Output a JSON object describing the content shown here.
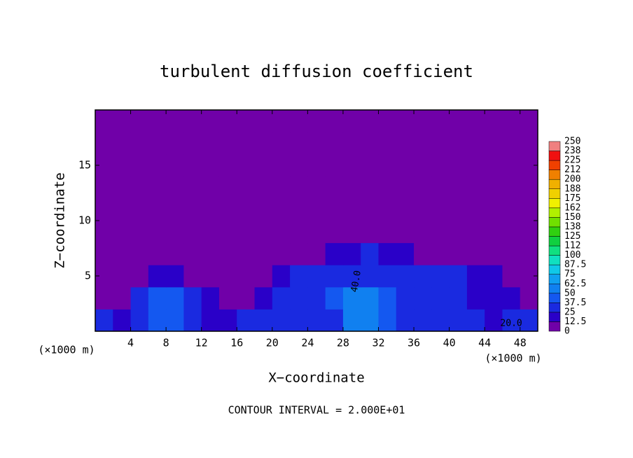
{
  "chart_data": {
    "type": "contour",
    "title": "turbulent diffusion coefficient",
    "x_label": "X−coordinate",
    "y_label": "Z−coordinate",
    "x_unit_labels": [
      "(×1000 m)",
      "(×1000 m)"
    ],
    "footer": "CONTOUR INTERVAL = 2.000E+01",
    "xlim": [
      0,
      50
    ],
    "ylim": [
      0,
      20
    ],
    "xticks": [
      4,
      8,
      12,
      16,
      20,
      24,
      28,
      32,
      36,
      40,
      44,
      48
    ],
    "yticks": [
      5,
      10,
      15
    ],
    "x": [
      1,
      3,
      5,
      7,
      9,
      11,
      13,
      15,
      17,
      19,
      21,
      23,
      25,
      27,
      29,
      31,
      33,
      35,
      37,
      39,
      41,
      43,
      45,
      47,
      49
    ],
    "y": [
      1,
      3,
      5,
      7,
      9,
      11,
      13,
      15,
      17,
      19
    ],
    "z": [
      [
        25,
        20,
        37,
        40,
        40,
        37,
        20,
        15,
        25,
        25,
        30,
        25,
        30,
        35,
        50,
        55,
        40,
        35,
        30,
        30,
        30,
        25,
        20,
        25,
        30
      ],
      [
        5,
        10,
        37,
        45,
        45,
        30,
        15,
        10,
        5,
        20,
        25,
        25,
        30,
        40,
        50,
        55,
        45,
        30,
        30,
        25,
        25,
        20,
        20,
        15,
        10
      ],
      [
        0,
        0,
        5,
        20,
        20,
        10,
        5,
        5,
        0,
        0,
        20,
        25,
        25,
        30,
        35,
        37,
        35,
        25,
        25,
        25,
        25,
        20,
        15,
        10,
        5
      ],
      [
        0,
        0,
        0,
        0,
        0,
        0,
        0,
        0,
        0,
        0,
        0,
        5,
        10,
        15,
        20,
        25,
        20,
        15,
        10,
        5,
        0,
        0,
        0,
        0,
        0
      ],
      [
        0,
        0,
        0,
        0,
        0,
        0,
        0,
        0,
        0,
        0,
        0,
        0,
        0,
        0,
        5,
        5,
        0,
        0,
        0,
        0,
        0,
        0,
        0,
        0,
        0
      ],
      [
        0,
        0,
        0,
        0,
        0,
        0,
        0,
        0,
        0,
        0,
        0,
        0,
        0,
        0,
        0,
        0,
        0,
        0,
        0,
        0,
        0,
        0,
        0,
        0,
        0
      ],
      [
        0,
        0,
        0,
        0,
        0,
        0,
        0,
        0,
        0,
        0,
        0,
        0,
        0,
        0,
        0,
        0,
        0,
        0,
        0,
        0,
        0,
        0,
        0,
        0,
        0
      ],
      [
        0,
        0,
        0,
        0,
        0,
        0,
        0,
        0,
        0,
        0,
        0,
        0,
        0,
        0,
        0,
        0,
        0,
        0,
        0,
        0,
        0,
        0,
        0,
        0,
        0
      ],
      [
        0,
        0,
        0,
        0,
        0,
        0,
        0,
        0,
        0,
        0,
        0,
        0,
        0,
        0,
        0,
        0,
        0,
        0,
        0,
        0,
        0,
        0,
        0,
        0,
        0
      ],
      [
        0,
        0,
        0,
        0,
        0,
        0,
        0,
        0,
        0,
        0,
        0,
        0,
        0,
        0,
        0,
        0,
        0,
        0,
        0,
        0,
        0,
        0,
        0,
        0,
        0
      ]
    ],
    "levels": [
      0,
      12.5,
      25,
      37.5,
      50,
      62.5,
      75,
      87.5,
      100,
      112,
      125,
      138,
      150,
      162,
      175,
      188,
      200,
      212,
      225,
      238,
      250
    ],
    "colors": [
      "#7000a8",
      "#2a00c8",
      "#1a2ae0",
      "#1458f0",
      "#1080f0",
      "#10a0f0",
      "#10c8e8",
      "#10e0c0",
      "#10e080",
      "#10d040",
      "#30d010",
      "#70e000",
      "#b0f000",
      "#f0f000",
      "#f0d000",
      "#f0b000",
      "#f08000",
      "#f04000",
      "#f01010",
      "#f08080"
    ],
    "contour_labels": [
      "40.0",
      "20.0"
    ]
  }
}
